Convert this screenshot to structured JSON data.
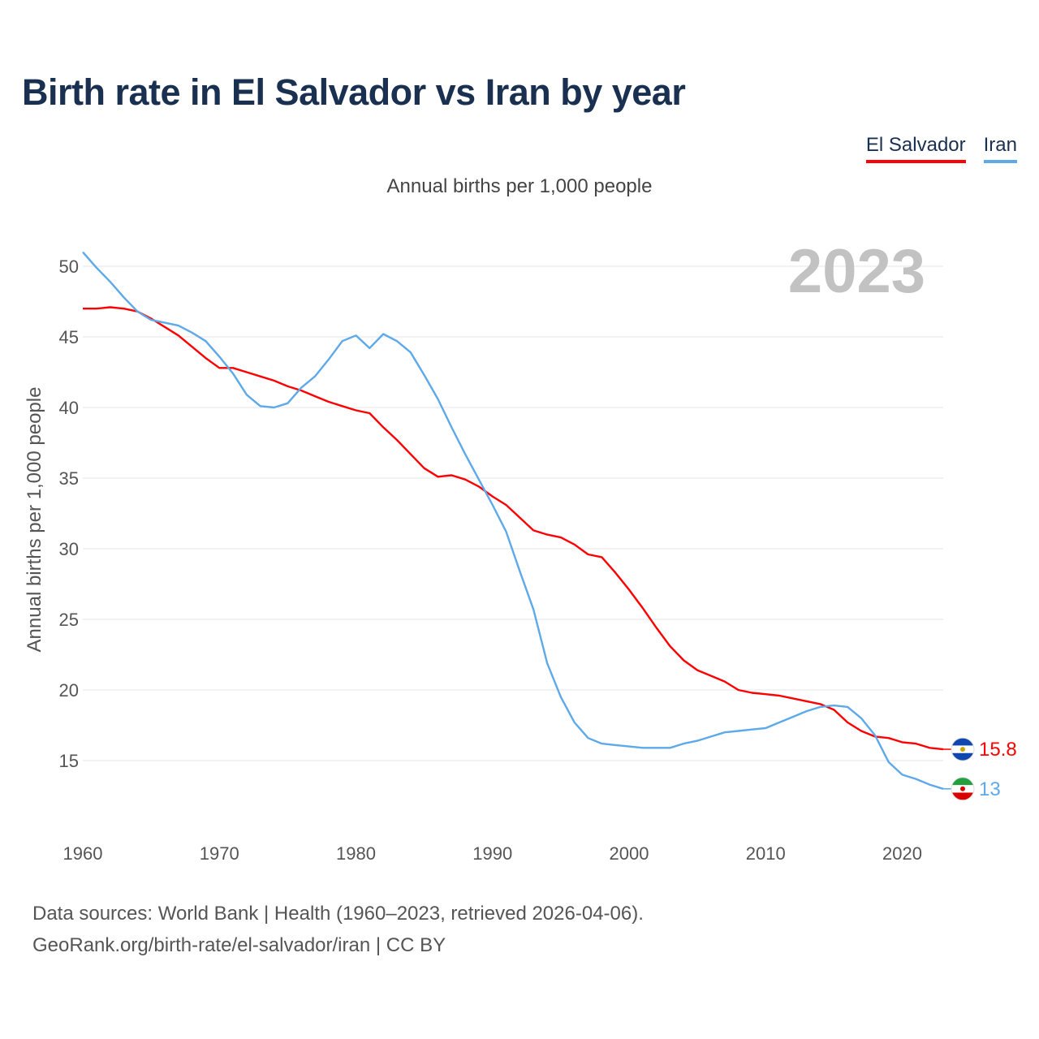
{
  "title": "Birth rate in El Salvador vs Iran by year",
  "subtitle": "Annual births per 1,000 people",
  "legend": [
    {
      "label": "El Salvador",
      "color": "#ff0000"
    },
    {
      "label": "Iran",
      "color": "#5da9e9"
    }
  ],
  "year_overlay": "2023",
  "footer": {
    "line1": "Data sources: World Bank | Health (1960–2023, retrieved 2026-04-06).",
    "line2": "GeoRank.org/birth-rate/el-salvador/iran | CC BY"
  },
  "chart_data": {
    "type": "line",
    "title": "Birth rate in El Salvador vs Iran by year",
    "ylabel": "Annual births per 1,000 people",
    "xlabel": "",
    "xlim": [
      1960,
      2023
    ],
    "ylim": [
      10,
      52
    ],
    "x_ticks": [
      1960,
      1970,
      1980,
      1990,
      2000,
      2010,
      2020
    ],
    "y_ticks": [
      15,
      20,
      25,
      30,
      35,
      40,
      45,
      50
    ],
    "grid": true,
    "x": [
      1960,
      1961,
      1962,
      1963,
      1964,
      1965,
      1966,
      1967,
      1968,
      1969,
      1970,
      1971,
      1972,
      1973,
      1974,
      1975,
      1976,
      1977,
      1978,
      1979,
      1980,
      1981,
      1982,
      1983,
      1984,
      1985,
      1986,
      1987,
      1988,
      1989,
      1990,
      1991,
      1992,
      1993,
      1994,
      1995,
      1996,
      1997,
      1998,
      1999,
      2000,
      2001,
      2002,
      2003,
      2004,
      2005,
      2006,
      2007,
      2008,
      2009,
      2010,
      2011,
      2012,
      2013,
      2014,
      2015,
      2016,
      2017,
      2018,
      2019,
      2020,
      2021,
      2022,
      2023
    ],
    "series": [
      {
        "name": "El Salvador",
        "color": "#ff0000",
        "end_label": "15.8",
        "values": [
          47.0,
          47.0,
          47.1,
          47.0,
          46.8,
          46.3,
          45.7,
          45.1,
          44.3,
          43.5,
          42.8,
          42.8,
          42.5,
          42.2,
          41.9,
          41.5,
          41.2,
          40.8,
          40.4,
          40.1,
          39.8,
          39.6,
          38.6,
          37.7,
          36.7,
          35.7,
          35.1,
          35.2,
          34.9,
          34.4,
          33.7,
          33.1,
          32.2,
          31.3,
          31.0,
          30.8,
          30.3,
          29.6,
          29.4,
          28.3,
          27.1,
          25.8,
          24.4,
          23.1,
          22.1,
          21.4,
          21.0,
          20.6,
          20.0,
          19.8,
          19.7,
          19.6,
          19.4,
          19.2,
          19.0,
          18.6,
          17.7,
          17.1,
          16.7,
          16.6,
          16.3,
          16.2,
          15.9,
          15.8
        ]
      },
      {
        "name": "Iran",
        "color": "#5da9e9",
        "end_label": "13",
        "values": [
          51.0,
          49.9,
          48.9,
          47.8,
          46.8,
          46.2,
          46.0,
          45.8,
          45.3,
          44.7,
          43.6,
          42.4,
          40.9,
          40.1,
          40.0,
          40.3,
          41.4,
          42.2,
          43.4,
          44.7,
          45.1,
          44.2,
          45.2,
          44.7,
          43.9,
          42.3,
          40.6,
          38.6,
          36.7,
          34.9,
          33.1,
          31.2,
          28.4,
          25.7,
          21.9,
          19.5,
          17.7,
          16.6,
          16.2,
          16.1,
          16.0,
          15.9,
          15.9,
          15.9,
          16.2,
          16.4,
          16.7,
          17.0,
          17.1,
          17.2,
          17.3,
          17.7,
          18.1,
          18.5,
          18.8,
          18.9,
          18.8,
          18.0,
          16.8,
          14.9,
          14.0,
          13.7,
          13.3,
          13.0
        ]
      }
    ]
  }
}
